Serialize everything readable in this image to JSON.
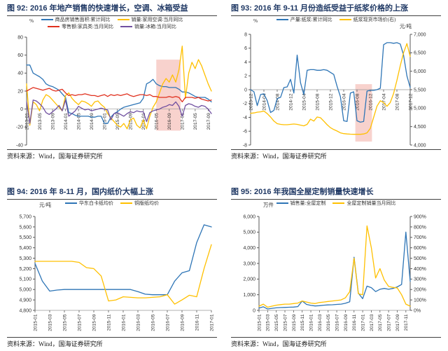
{
  "source_note": "资料来源：Wind，国海证券研究所",
  "chart_data": [
    {
      "id": "fig92",
      "type": "line",
      "title": "图 92: 2016 年地产销售的快速增长，空调、冰箱受益",
      "unit_left": "%",
      "axis_left": {
        "min": -40,
        "max": 80,
        "ticks": [
          [
            80,
            "80"
          ],
          [
            60,
            "60"
          ],
          [
            40,
            "40"
          ],
          [
            20,
            "20"
          ],
          [
            0,
            "0"
          ],
          [
            -20,
            "-20"
          ],
          [
            -40,
            "-40"
          ]
        ]
      },
      "x_count": 58,
      "x_ticks": [
        [
          0,
          "2013-01"
        ],
        [
          4,
          "2013-05"
        ],
        [
          8,
          "2013-09"
        ],
        [
          12,
          "2014-01"
        ],
        [
          16,
          "2014-05"
        ],
        [
          20,
          "2014-09"
        ],
        [
          24,
          "2015-01"
        ],
        [
          28,
          "2015-05"
        ],
        [
          32,
          "2015-09"
        ],
        [
          36,
          "2016-01"
        ],
        [
          40,
          "2016-05"
        ],
        [
          44,
          "2016-09"
        ],
        [
          48,
          "2017-01"
        ],
        [
          52,
          "2017-05"
        ],
        [
          56,
          "2017-09"
        ]
      ],
      "highlight": {
        "x1": 40,
        "x2": 47.5,
        "y1": 55,
        "y2": -24,
        "color": "#F2A59C",
        "opacity": 0.5
      },
      "series": [
        {
          "name": "商品房销售面积:累计同比",
          "color": "#2E75B6",
          "axis": "left",
          "values": [
            49,
            49,
            40,
            38,
            36,
            33,
            28,
            26,
            25,
            23,
            21,
            17,
            13,
            -4,
            -5,
            -7,
            -8,
            -8,
            -8,
            -8,
            -9,
            -9,
            -8,
            -8,
            -16,
            -16,
            -9,
            -5,
            -3,
            0,
            2,
            3,
            4,
            5,
            6,
            7,
            12,
            28,
            30,
            33,
            28,
            26,
            25,
            25,
            24,
            24,
            24,
            22,
            19,
            19,
            18,
            16,
            14,
            13,
            13,
            13,
            11,
            8
          ]
        },
        {
          "name": "销量:家用空调:当月同比",
          "color": "#FFC000",
          "axis": "left",
          "values": [
            28,
            -18,
            8,
            5,
            -2,
            10,
            16,
            14,
            10,
            6,
            2,
            -2,
            15,
            18,
            12,
            8,
            5,
            9,
            8,
            6,
            3,
            8,
            9,
            5,
            2,
            -5,
            -10,
            -14,
            -18,
            -20,
            -16,
            -22,
            -12,
            -10,
            -18,
            -21,
            -12,
            -22,
            -8,
            2,
            8,
            18,
            28,
            34,
            30,
            38,
            30,
            44,
            70,
            12,
            40,
            52,
            45,
            55,
            48,
            38,
            28,
            20
          ]
        },
        {
          "name": "零售额:家具类:当月同比",
          "color": "#E0301E",
          "axis": "left",
          "values": [
            20,
            22,
            24,
            23,
            22,
            21,
            22,
            23,
            21,
            20,
            21,
            22,
            18,
            15,
            16,
            15,
            16,
            16,
            17,
            16,
            15,
            15,
            14,
            15,
            16,
            14,
            16,
            15,
            16,
            15,
            16,
            17,
            15,
            14,
            15,
            16,
            16,
            15,
            16,
            14,
            14,
            13,
            13,
            13,
            14,
            13,
            14,
            13,
            8,
            13,
            13,
            13,
            12,
            13,
            11,
            10,
            9,
            10
          ]
        },
        {
          "name": "销量:冰箱:当月同比",
          "color": "#7050A0",
          "axis": "left",
          "values": [
            8,
            -16,
            10,
            9,
            6,
            2,
            -4,
            -6,
            -3,
            0,
            4,
            -2,
            10,
            -8,
            -5,
            -2,
            3,
            1,
            -1,
            0,
            -2,
            -1,
            0,
            1,
            0,
            -1,
            -12,
            -5,
            -4,
            -6,
            -8,
            -5,
            -3,
            -4,
            -2,
            -3,
            -3,
            -14,
            -4,
            -2,
            -1,
            0,
            2,
            3,
            5,
            4,
            8,
            3,
            -8,
            4,
            6,
            5,
            3,
            2,
            4,
            3,
            0,
            -5
          ]
        }
      ]
    },
    {
      "id": "fig93",
      "type": "line",
      "title": "图 93: 2016 年 9-11 月份造纸受益于纸浆价格的上涨",
      "unit_left": "%",
      "unit_right": "元/吨",
      "axis_left": {
        "min": -8,
        "max": 8,
        "ticks": [
          [
            8,
            "8"
          ],
          [
            6,
            "6"
          ],
          [
            4,
            "4"
          ],
          [
            2,
            "2"
          ],
          [
            0,
            "0"
          ],
          [
            -2,
            "-2"
          ],
          [
            -4,
            "-4"
          ],
          [
            -6,
            "-6"
          ],
          [
            -8,
            "-8"
          ]
        ]
      },
      "axis_right": {
        "min": 4000,
        "max": 7000,
        "ticks": [
          [
            7000,
            "7,000"
          ],
          [
            6500,
            "6,500"
          ],
          [
            6000,
            "6,000"
          ],
          [
            5500,
            "5,500"
          ],
          [
            5000,
            "5,000"
          ],
          [
            4500,
            "4,500"
          ],
          [
            4000,
            "4,000"
          ]
        ]
      },
      "x_count": 49,
      "x_ticks": [
        [
          0,
          "2013-12"
        ],
        [
          4,
          "2014-04"
        ],
        [
          8,
          "2014-08"
        ],
        [
          12,
          "2014-12"
        ],
        [
          16,
          "2015-04"
        ],
        [
          20,
          "2015-08"
        ],
        [
          24,
          "2015-12"
        ],
        [
          28,
          "2016-04"
        ],
        [
          32,
          "2016-08"
        ],
        [
          36,
          "2016-12"
        ],
        [
          40,
          "2017-04"
        ],
        [
          44,
          "2017-08"
        ],
        [
          48,
          "2017-12"
        ]
      ],
      "highlight": {
        "x1": 31.5,
        "x2": 36.5,
        "y1": 0.8,
        "y2": -7.5,
        "color": "#F2A59C",
        "opacity": 0.5
      },
      "series": [
        {
          "name": "产量:纸浆:累计同比",
          "color": "#2E75B6",
          "axis": "left",
          "values": [
            0,
            -0.3,
            -2.3,
            -0.7,
            -0.6,
            -1.6,
            -3.3,
            -3.0,
            -1.3,
            -1.1,
            0.3,
            0.4,
            1.5,
            -0.5,
            5.0,
            1.0,
            -0.7,
            2.8,
            2.9,
            2.9,
            2.8,
            2.8,
            2.9,
            2.8,
            2.5,
            2.2,
            0.5,
            -1.0,
            -4.5,
            -4.6,
            -0.5,
            -0.3,
            -4.5,
            -4.7,
            -4.6,
            -0.2,
            -0.1,
            -0.1,
            0.0,
            0.2,
            6.5,
            6.8,
            6.8,
            6.7,
            6.8,
            6.6,
            5.0,
            2.0,
            0.3
          ]
        },
        {
          "name": "纸浆现货市场价(右)",
          "color": "#FFC000",
          "axis": "right",
          "values": [
            4860,
            4870,
            4890,
            4900,
            4920,
            4850,
            4760,
            4650,
            4580,
            4560,
            4550,
            4550,
            4560,
            4570,
            4560,
            4540,
            4520,
            4560,
            4700,
            4650,
            4760,
            4740,
            4650,
            4550,
            4470,
            4420,
            4380,
            4330,
            4310,
            4300,
            4295,
            4290,
            4290,
            4290,
            4300,
            4330,
            4450,
            4750,
            5050,
            5200,
            5150,
            5050,
            5150,
            5400,
            5750,
            6150,
            6500,
            6750,
            6400
          ]
        }
      ]
    },
    {
      "id": "fig94",
      "type": "line",
      "title": "图 94: 2016 年 8-11 月，国内纸价大幅上涨",
      "unit_left": "元/吨",
      "axis_left": {
        "min": 4800,
        "max": 5700,
        "ticks": [
          [
            5700,
            "5,700"
          ],
          [
            5600,
            "5,600"
          ],
          [
            5500,
            "5,500"
          ],
          [
            5400,
            "5,400"
          ],
          [
            5300,
            "5,300"
          ],
          [
            5200,
            "5,200"
          ],
          [
            5100,
            "5,100"
          ],
          [
            5000,
            "5,000"
          ],
          [
            4900,
            "4,900"
          ],
          [
            4800,
            "4,800"
          ]
        ]
      },
      "x_count": 25,
      "x_ticks": [
        [
          0,
          "2015-01"
        ],
        [
          2,
          "2015-03"
        ],
        [
          4,
          "2015-05"
        ],
        [
          6,
          "2015-07"
        ],
        [
          8,
          "2015-09"
        ],
        [
          10,
          "2015-11"
        ],
        [
          12,
          "2016-01"
        ],
        [
          14,
          "2016-03"
        ],
        [
          16,
          "2016-05"
        ],
        [
          18,
          "2016-07"
        ],
        [
          20,
          "2016-09"
        ],
        [
          22,
          "2016-11"
        ],
        [
          24,
          "2017-01"
        ]
      ],
      "series": [
        {
          "name": "华东白卡纸均价",
          "color": "#2E75B6",
          "axis": "left",
          "values": [
            5250,
            5080,
            4985,
            4995,
            5000,
            5000,
            5000,
            5000,
            5000,
            5000,
            5000,
            5000,
            5000,
            5000,
            4980,
            4955,
            4950,
            4950,
            4950,
            5080,
            5160,
            5180,
            5450,
            5620,
            5600
          ]
        },
        {
          "name": "铜版纸均价",
          "color": "#FFC000",
          "axis": "left",
          "values": [
            5270,
            5270,
            5270,
            5270,
            5270,
            5270,
            5260,
            5210,
            5200,
            5130,
            4890,
            4900,
            4930,
            4925,
            4920,
            4920,
            4925,
            4930,
            4950,
            4860,
            4900,
            4945,
            4930,
            5200,
            5430
          ]
        }
      ]
    },
    {
      "id": "fig95",
      "type": "line",
      "title": "图 95: 2016 年我国全屋定制销量快速增长",
      "unit_left": "万件",
      "axis_left": {
        "min": 0,
        "max": 6000,
        "ticks": [
          [
            6000,
            "6,000"
          ],
          [
            5000,
            "5,000"
          ],
          [
            4000,
            "4,000"
          ],
          [
            3000,
            "3,000"
          ],
          [
            2000,
            "2,000"
          ],
          [
            1000,
            "1,000"
          ],
          [
            0,
            "0"
          ]
        ]
      },
      "axis_right": {
        "min": 0,
        "max": 900,
        "ticks": [
          [
            900,
            "900%"
          ],
          [
            800,
            "800%"
          ],
          [
            700,
            "700%"
          ],
          [
            600,
            "600%"
          ],
          [
            500,
            "500%"
          ],
          [
            400,
            "400%"
          ],
          [
            300,
            "300%"
          ],
          [
            200,
            "200%"
          ],
          [
            100,
            "100%"
          ],
          [
            0,
            "0%"
          ]
        ]
      },
      "x_count": 36,
      "x_ticks": [
        [
          0,
          "2015-01"
        ],
        [
          2,
          "2015-03"
        ],
        [
          4,
          "2015-05"
        ],
        [
          6,
          "2015-07"
        ],
        [
          8,
          "2015-09"
        ],
        [
          10,
          "2015-11"
        ],
        [
          12,
          "2016-01"
        ],
        [
          14,
          "2016-03"
        ],
        [
          16,
          "2016-05"
        ],
        [
          18,
          "2016-07"
        ],
        [
          20,
          "2016-09"
        ],
        [
          22,
          "2016-11"
        ],
        [
          24,
          "2017-01"
        ],
        [
          26,
          "2017-03"
        ],
        [
          28,
          "2017-05"
        ],
        [
          30,
          "2017-07"
        ],
        [
          32,
          "2017-09"
        ],
        [
          34,
          "2017-11"
        ]
      ],
      "series": [
        {
          "name": "销售量:全屋定制",
          "color": "#2E75B6",
          "axis": "left",
          "values": [
            150,
            230,
            90,
            130,
            160,
            180,
            190,
            200,
            210,
            240,
            600,
            380,
            320,
            280,
            300,
            330,
            350,
            360,
            380,
            400,
            450,
            550,
            3400,
            1100,
            750,
            1550,
            1450,
            1200,
            1350,
            1400,
            1350,
            1400,
            1500,
            1650,
            5000,
            1850
          ]
        },
        {
          "name": "全屋定制销量当月同比",
          "color": "#FFC000",
          "axis": "right",
          "values": [
            40,
            60,
            30,
            40,
            50,
            55,
            60,
            60,
            65,
            70,
            90,
            80,
            70,
            65,
            75,
            80,
            85,
            90,
            95,
            100,
            120,
            180,
            500,
            160,
            150,
            810,
            600,
            310,
            400,
            290,
            230,
            220,
            215,
            150,
            60,
            40
          ]
        }
      ]
    }
  ]
}
